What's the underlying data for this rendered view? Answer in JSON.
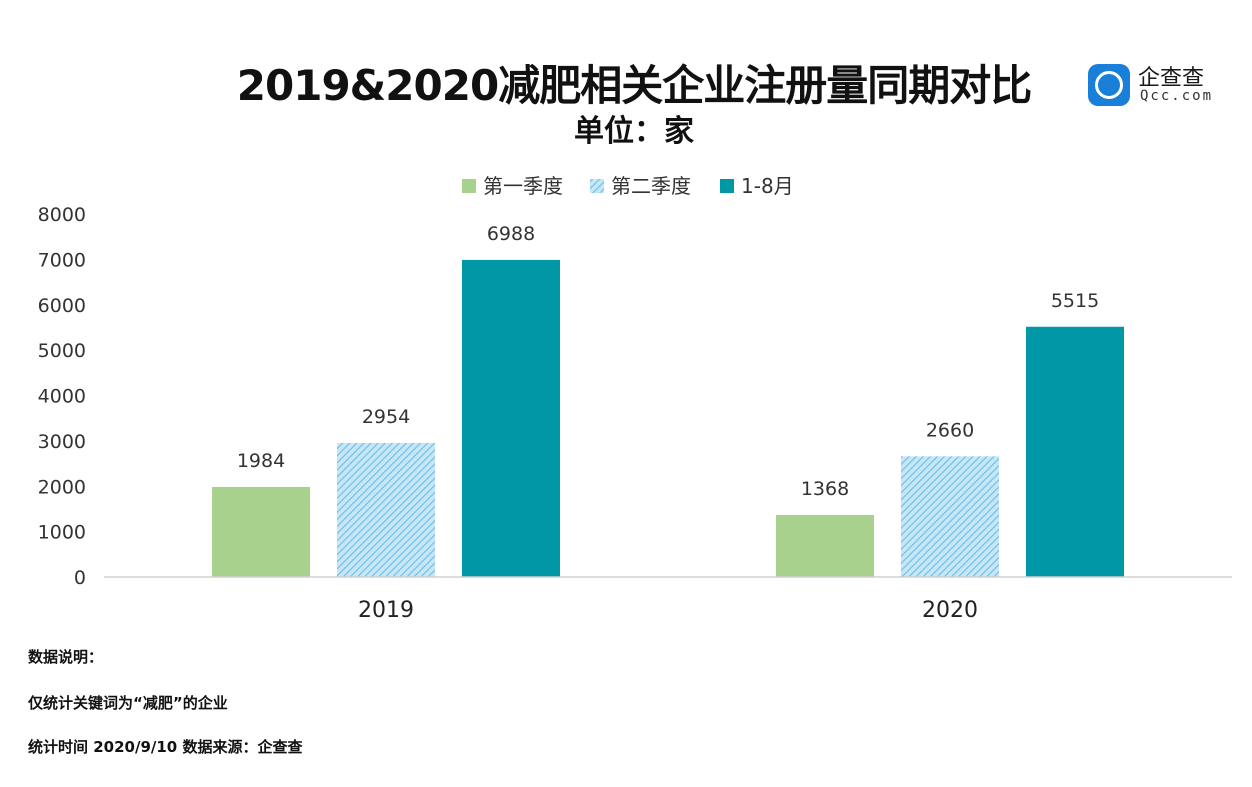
{
  "chart_data": {
    "type": "bar",
    "title": "2019&2020减肥相关企业注册量同期对比",
    "subtitle": "单位：家",
    "categories": [
      "2019",
      "2020"
    ],
    "series": [
      {
        "name": "第一季度",
        "values": [
          1984,
          1368
        ],
        "color": "#a9d18e",
        "pattern": "solid"
      },
      {
        "name": "第二季度",
        "values": [
          2954,
          2660
        ],
        "color": "#9dd3ef",
        "pattern": "hatched"
      },
      {
        "name": "1-8月",
        "values": [
          6988,
          5515
        ],
        "color": "#0097a7",
        "pattern": "solid"
      }
    ],
    "ylim": [
      0,
      8000
    ],
    "yticks": [
      0,
      1000,
      2000,
      3000,
      4000,
      5000,
      6000,
      7000,
      8000
    ],
    "xlabel": "",
    "ylabel": "",
    "grid": false,
    "legend_position": "top-center"
  },
  "logo": {
    "brand": "企查查",
    "domain": "Qcc.com"
  },
  "notes": {
    "heading": "数据说明：",
    "line1": "仅统计关键词为“减肥”的企业",
    "line2": "统计时间 2020/9/10   数据来源：企查查"
  }
}
